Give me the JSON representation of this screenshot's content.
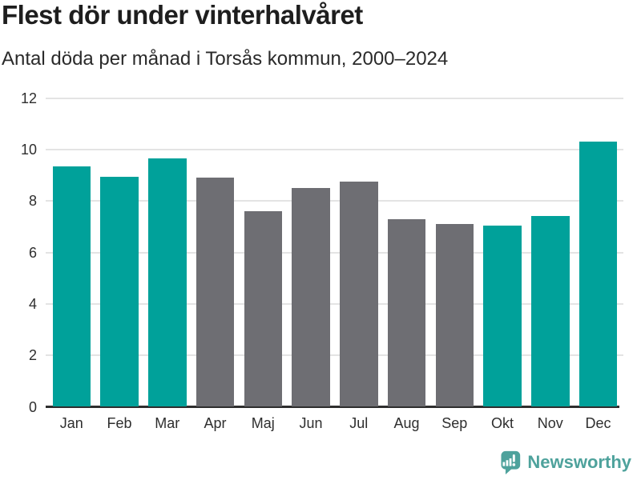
{
  "header": {
    "title": "Flest dör under vinterhalvåret",
    "subtitle": "Antal döda per månad i Torsås kommun, 2000–2024"
  },
  "chart_data": {
    "type": "bar",
    "title": "Flest dör under vinterhalvåret",
    "subtitle": "Antal döda per månad i Torsås kommun, 2000–2024",
    "categories": [
      "Jan",
      "Feb",
      "Mar",
      "Apr",
      "Maj",
      "Jun",
      "Jul",
      "Aug",
      "Sep",
      "Okt",
      "Nov",
      "Dec"
    ],
    "values": [
      9.35,
      8.95,
      9.65,
      8.9,
      7.6,
      8.5,
      8.75,
      7.3,
      7.1,
      7.05,
      7.4,
      10.3
    ],
    "bar_color_keys": [
      "teal",
      "teal",
      "teal",
      "gray",
      "gray",
      "gray",
      "gray",
      "gray",
      "gray",
      "teal",
      "teal",
      "teal"
    ],
    "palette": {
      "teal": "#00A19A",
      "gray": "#6E6E73"
    },
    "xlabel": "",
    "ylabel": "",
    "ylim": [
      0,
      12
    ],
    "yticks": [
      0,
      2,
      4,
      6,
      8,
      10,
      12
    ],
    "grid": true,
    "legend": false,
    "axis_color": "#2E2E2E",
    "grid_color": "#E4E4E4",
    "text_color": "#2E2E2E"
  },
  "footer": {
    "brand": "Newsworthy",
    "brand_color": "#4EA29C",
    "logo_icon": "bar-chart-speech-bubble-icon"
  }
}
